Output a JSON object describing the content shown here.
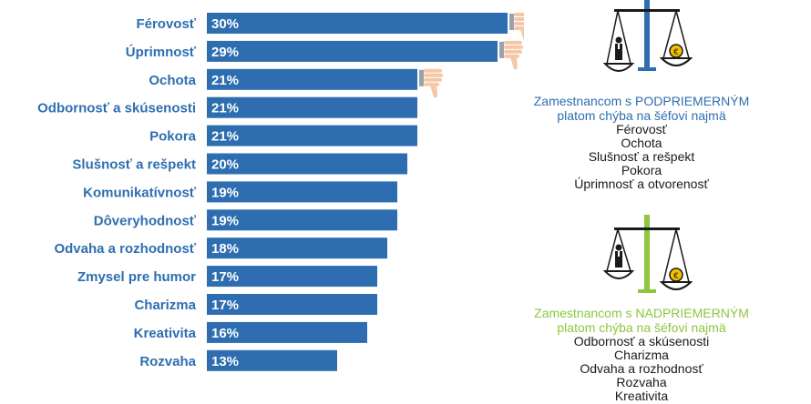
{
  "colors": {
    "bar": "#2e6eb0",
    "label": "#2e6eb0",
    "bar_text": "#ffffff",
    "green": "#8dc63f",
    "dark": "#1a1a1a",
    "thumb": "#f6c7a6"
  },
  "chart_data": {
    "type": "bar",
    "orientation": "horizontal",
    "categories": [
      "Férovosť",
      "Úprimnosť",
      "Ochota",
      "Odbornosť a skúsenosti",
      "Pokora",
      "Slušnosť a rešpekt",
      "Komunikatívnosť",
      "Dôveryhodnosť",
      "Odvaha a rozhodnosť",
      "Zmysel pre humor",
      "Charizma",
      "Kreativita",
      "Rozvaha"
    ],
    "values": [
      30,
      29,
      21,
      21,
      21,
      20,
      19,
      19,
      18,
      17,
      17,
      16,
      13
    ],
    "value_labels": [
      "30%",
      "29%",
      "21%",
      "21%",
      "21%",
      "20%",
      "19%",
      "19%",
      "18%",
      "17%",
      "17%",
      "16%",
      "13%"
    ],
    "thumbs_down_on": [
      "Férovosť",
      "Úprimnosť",
      "Ochota"
    ],
    "xlim": [
      0,
      30
    ],
    "grid": false,
    "legend": "none"
  },
  "below_avg": {
    "heading_line1": "Zamestnancom s PODPRIEMERNÝM",
    "heading_line2": "platom chýba na šéfovi najmä",
    "items": [
      "Férovosť",
      "Ochota",
      "Slušnosť a rešpekt",
      "Pokora",
      "Úprimnosť a otvorenosť"
    ],
    "coin_symbol": "€",
    "icon": "scale-icon"
  },
  "above_avg": {
    "heading_line1": "Zamestnancom s NADPRIEMERNÝM",
    "heading_line2": "platom chýba na šéfovi najmä",
    "items": [
      "Odbornosť a skúsenosti",
      "Charizma",
      "Odvaha a rozhodnosť",
      "Rozvaha",
      "Kreativita"
    ],
    "coin_symbol": "€",
    "icon": "scale-icon"
  }
}
